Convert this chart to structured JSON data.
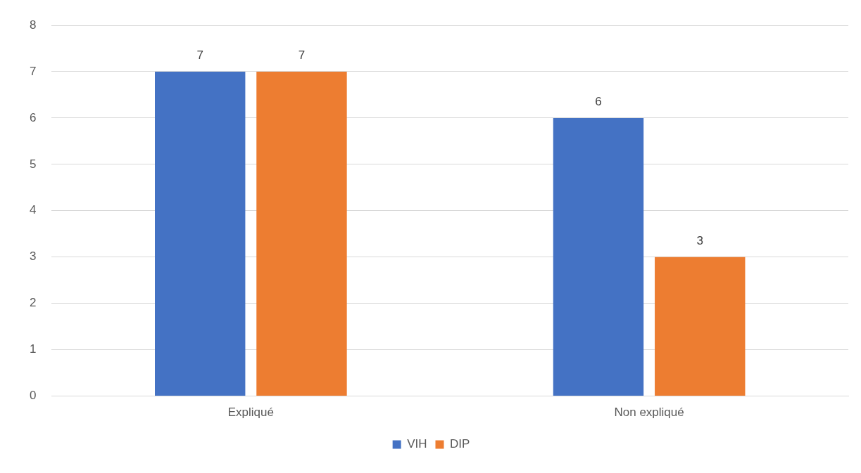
{
  "chart_data": {
    "type": "bar",
    "categories": [
      "Expliqué",
      "Non expliqué"
    ],
    "series": [
      {
        "name": "VIH",
        "color": "#4472c4",
        "values": [
          7,
          6
        ]
      },
      {
        "name": "DIP",
        "color": "#ed7d31",
        "values": [
          7,
          3
        ]
      }
    ],
    "ylim": [
      0,
      8
    ],
    "yticks": [
      0,
      1,
      2,
      3,
      4,
      5,
      6,
      7,
      8
    ],
    "grid": "y",
    "legend": "bottom",
    "data_labels": true
  }
}
